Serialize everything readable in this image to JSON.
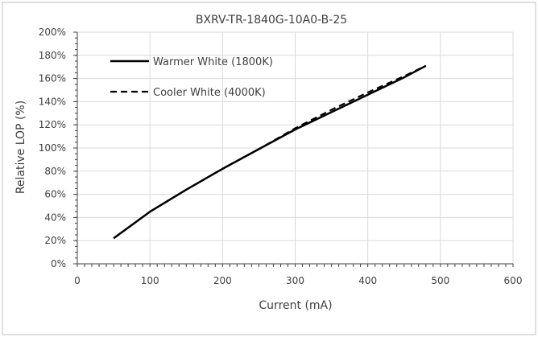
{
  "chart_data": {
    "type": "line",
    "title": "BXRV-TR-1840G-10A0-B-25",
    "xlabel": "Current (mA)",
    "ylabel": "Relative LOP (%)",
    "xlim": [
      0,
      600
    ],
    "ylim": [
      0,
      200
    ],
    "x_ticks": [
      "0",
      "100",
      "200",
      "300",
      "400",
      "500",
      "600"
    ],
    "y_ticks": [
      "0%",
      "20%",
      "40%",
      "60%",
      "80%",
      "100%",
      "120%",
      "140%",
      "160%",
      "180%",
      "200%"
    ],
    "grid": "horizontal and vertical",
    "legend_position": "top-left",
    "series": [
      {
        "name": "Warmer White (1800K)",
        "line_style": "solid",
        "color": "#000000",
        "x": [
          50,
          100,
          150,
          200,
          250,
          300,
          350,
          400,
          450,
          480
        ],
        "y": [
          22,
          45,
          64,
          82,
          99,
          116,
          131,
          146,
          161,
          171
        ]
      },
      {
        "name": "Cooler White (4000K)",
        "line_style": "dashed",
        "color": "#000000",
        "x": [
          50,
          100,
          150,
          200,
          250,
          300,
          350,
          400,
          450,
          480
        ],
        "y": [
          22,
          45,
          64,
          82,
          99,
          117,
          133,
          148,
          162,
          171
        ]
      }
    ]
  }
}
